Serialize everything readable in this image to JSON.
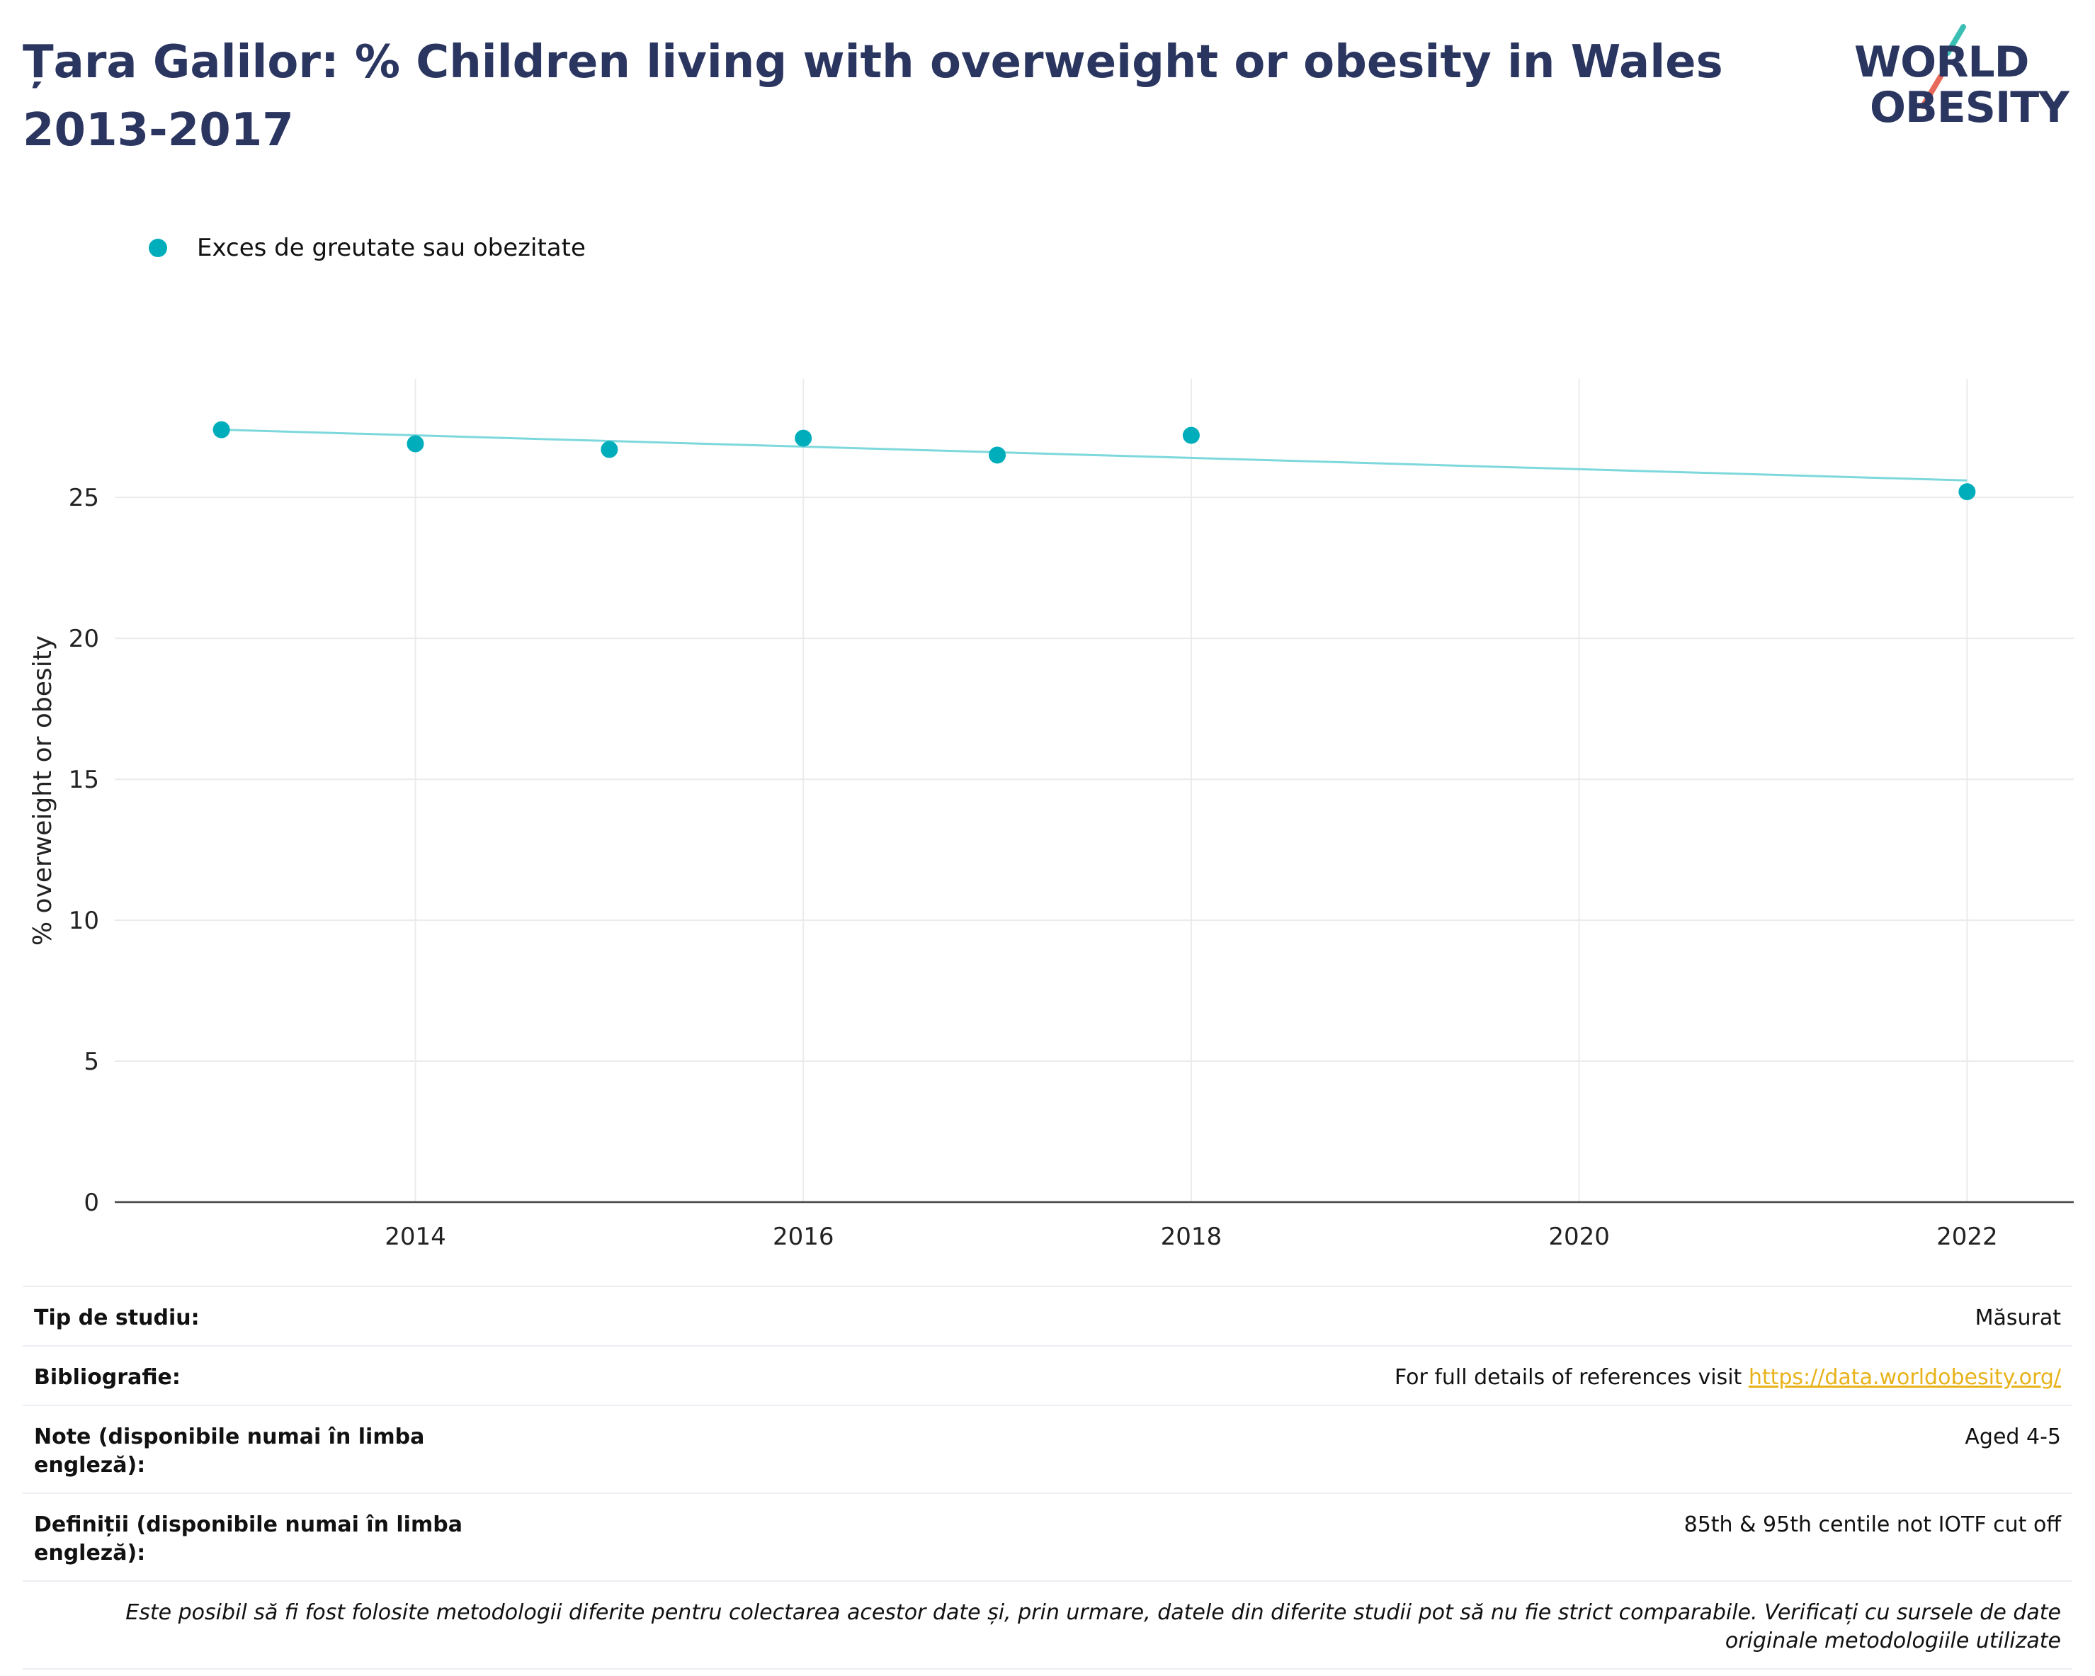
{
  "header": {
    "title": "Țara Galilor: % Children living with overweight or obesity in Wales 2013-2017",
    "logo_line1": "WORLD",
    "logo_line2": "OBESITY"
  },
  "colors": {
    "title": "#2a3560",
    "series": "#00aebb",
    "trend": "#7dd8dc",
    "link": "#e8b21a",
    "logo_teal": "#3bbfb5",
    "logo_red": "#e86a5a"
  },
  "chart_data": {
    "type": "scatter",
    "title": "Țara Galilor: % Children living with overweight or obesity in Wales 2013-2017",
    "xlabel": "",
    "ylabel": "% overweight or obesity",
    "xlim": [
      2012.45,
      2022.55
    ],
    "ylim": [
      0,
      29.2
    ],
    "x_ticks": [
      2014,
      2016,
      2018,
      2020,
      2022
    ],
    "y_ticks": [
      0,
      5,
      10,
      15,
      20,
      25
    ],
    "grid": true,
    "legend_position": "top-left",
    "series": [
      {
        "name": "Exces de greutate sau obezitate",
        "x": [
          2013,
          2014,
          2015,
          2016,
          2017,
          2018,
          2022
        ],
        "y": [
          27.4,
          26.9,
          26.7,
          27.1,
          26.5,
          27.2,
          25.2
        ]
      }
    ],
    "trendline": {
      "x": [
        2013,
        2022
      ],
      "y": [
        27.4,
        25.6
      ]
    }
  },
  "meta": {
    "study_type_label": "Tip de studiu:",
    "study_type_value": "Măsurat",
    "bibliography_label": "Bibliografie:",
    "bibliography_text": "For full details of references visit ",
    "bibliography_link": "https://data.worldobesity.org/",
    "notes_label": "Note (disponibile numai în limba engleză):",
    "notes_value": "Aged 4-5",
    "definitions_label": "Definiții (disponibile numai în limba engleză):",
    "definitions_value": "85th & 95th centile not IOTF cut off",
    "disclaimer": "Este posibil să fi fost folosite metodologii diferite pentru colectarea acestor date și, prin urmare, datele din diferite studii pot să nu fie strict comparabile. Verificați cu sursele de date originale metodologiile utilizate"
  }
}
